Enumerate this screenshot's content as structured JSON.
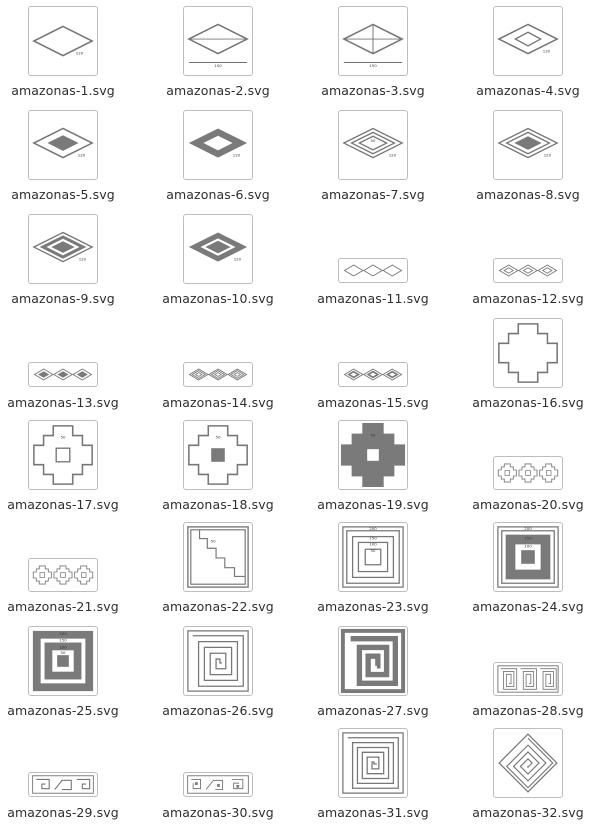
{
  "files": [
    {
      "name": "amazonas-1.svg",
      "icon": "diamond-outline-icon"
    },
    {
      "name": "amazonas-2.svg",
      "icon": "diamond-horizontal-line-icon"
    },
    {
      "name": "amazonas-3.svg",
      "icon": "diamond-cross-icon"
    },
    {
      "name": "amazonas-4.svg",
      "icon": "nested-diamond-icon"
    },
    {
      "name": "amazonas-5.svg",
      "icon": "diamond-filled-center-icon"
    },
    {
      "name": "amazonas-6.svg",
      "icon": "diamond-filled-ring-icon"
    },
    {
      "name": "amazonas-7.svg",
      "icon": "concentric-diamonds-icon"
    },
    {
      "name": "amazonas-8.svg",
      "icon": "concentric-diamonds-filled-icon"
    },
    {
      "name": "amazonas-9.svg",
      "icon": "diamond-ring-center-icon"
    },
    {
      "name": "amazonas-10.svg",
      "icon": "diamond-thick-ring-icon"
    },
    {
      "name": "amazonas-11.svg",
      "icon": "diamond-band-icon"
    },
    {
      "name": "amazonas-12.svg",
      "icon": "nested-diamond-band-icon"
    },
    {
      "name": "amazonas-13.svg",
      "icon": "filled-diamond-band-icon"
    },
    {
      "name": "amazonas-14.svg",
      "icon": "double-diamond-band-icon"
    },
    {
      "name": "amazonas-15.svg",
      "icon": "filled-nested-diamond-band-icon"
    },
    {
      "name": "amazonas-16.svg",
      "icon": "stepped-cross-icon"
    },
    {
      "name": "amazonas-17.svg",
      "icon": "stepped-cross-hollow-icon"
    },
    {
      "name": "amazonas-18.svg",
      "icon": "stepped-cross-square-icon"
    },
    {
      "name": "amazonas-19.svg",
      "icon": "stepped-cross-filled-icon"
    },
    {
      "name": "amazonas-20.svg",
      "icon": "stepped-cross-band-icon"
    },
    {
      "name": "amazonas-21.svg",
      "icon": "stepped-cross-band-small-icon"
    },
    {
      "name": "amazonas-22.svg",
      "icon": "staircase-square-icon"
    },
    {
      "name": "amazonas-23.svg",
      "icon": "concentric-squares-icon"
    },
    {
      "name": "amazonas-24.svg",
      "icon": "filled-square-frame-icon"
    },
    {
      "name": "amazonas-25.svg",
      "icon": "filled-concentric-squares-icon"
    },
    {
      "name": "amazonas-26.svg",
      "icon": "square-spiral-icon"
    },
    {
      "name": "amazonas-27.svg",
      "icon": "filled-square-spiral-icon"
    },
    {
      "name": "amazonas-28.svg",
      "icon": "spiral-meander-band-icon"
    },
    {
      "name": "amazonas-29.svg",
      "icon": "wave-meander-band-icon"
    },
    {
      "name": "amazonas-30.svg",
      "icon": "ornate-meander-band-icon"
    },
    {
      "name": "amazonas-31.svg",
      "icon": "large-square-spiral-icon"
    },
    {
      "name": "amazonas-32.svg",
      "icon": "diamond-spiral-icon"
    }
  ],
  "dimension_labels": {
    "l120": "120",
    "l150": "150",
    "l100": "100",
    "l200": "200",
    "l50": "50"
  }
}
